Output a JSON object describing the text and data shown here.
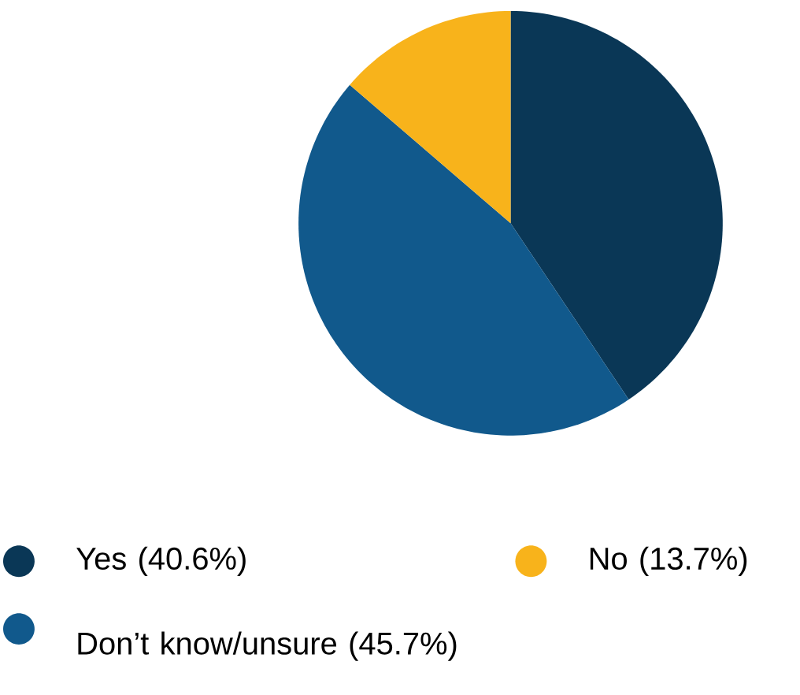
{
  "chart_data": {
    "type": "pie",
    "categories": [
      "Yes (40.6%)",
      "Don’t know/unsure (45.7%)",
      "No (13.7%)"
    ],
    "values": [
      40.6,
      45.7,
      13.7
    ],
    "colors": [
      "#0a3756",
      "#11598c",
      "#f8b31b"
    ],
    "legend": "bottom"
  }
}
